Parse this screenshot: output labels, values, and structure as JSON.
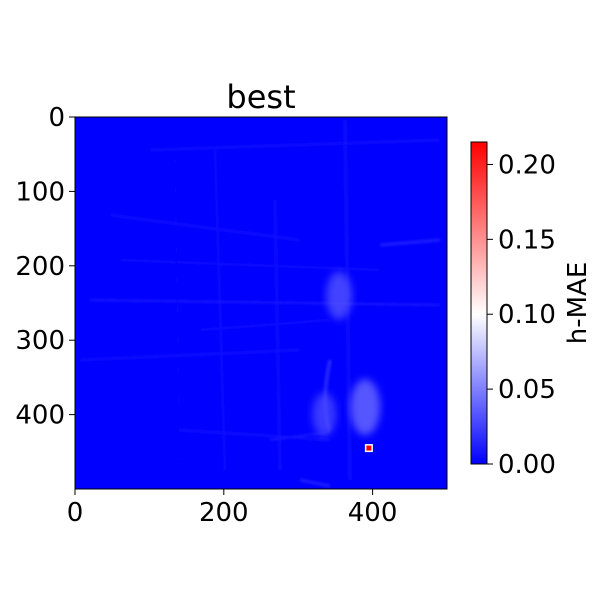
{
  "chart_data": {
    "type": "heatmap",
    "title": "best",
    "xlabel": "",
    "ylabel": "",
    "xlim": [
      0,
      500
    ],
    "ylim": [
      500,
      0
    ],
    "x_ticks": [
      0,
      200,
      400
    ],
    "y_ticks": [
      0,
      100,
      200,
      300,
      400
    ],
    "x_tick_labels": [
      "0",
      "200",
      "400"
    ],
    "y_tick_labels": [
      "0",
      "100",
      "200",
      "300",
      "400"
    ],
    "grid": false,
    "colormap": "bwr",
    "colors": {
      "low": "#0000ff",
      "mid": "#ffffff",
      "high": "#ff0000"
    },
    "colorbar": {
      "label": "h-MAE",
      "range": [
        0.0,
        0.215
      ],
      "ticks": [
        0.0,
        0.05,
        0.1,
        0.15,
        0.2
      ],
      "tick_labels": [
        "0.00",
        "0.05",
        "0.10",
        "0.15",
        "0.20"
      ]
    },
    "highlights": [
      {
        "x": 395,
        "y": 445,
        "value": 0.215,
        "description": "peak error"
      },
      {
        "x": 355,
        "y": 240,
        "value": 0.035
      },
      {
        "x": 335,
        "y": 400,
        "value": 0.03
      },
      {
        "x": 390,
        "y": 390,
        "value": 0.045
      }
    ]
  }
}
